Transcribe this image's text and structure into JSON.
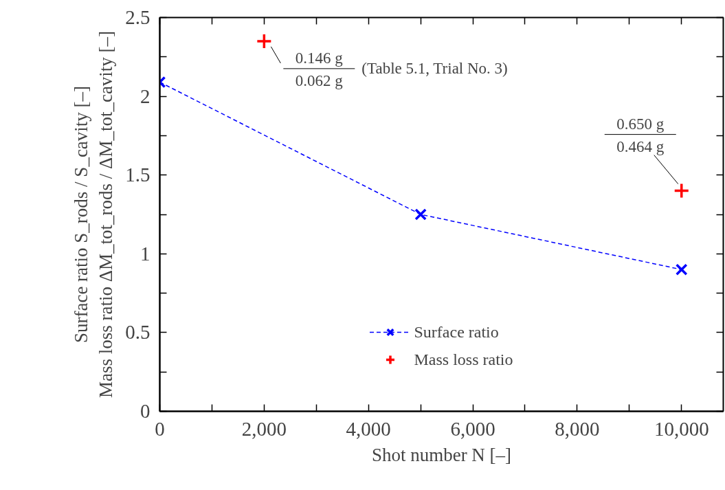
{
  "chart_data": {
    "type": "line",
    "xlabel": "Shot number N [–]",
    "ylabel": "Surface ratio S_rods / S_cavity [–]\nMass loss ratio ΔM_tot_rods / ΔM_tot_cavity [–]",
    "x": [
      0,
      5000,
      10000
    ],
    "series": [
      {
        "name": "Surface ratio",
        "color": "#0000ff",
        "marker": "x",
        "line_style": "dashed",
        "values": [
          2.09,
          1.25,
          0.9
        ]
      },
      {
        "name": "Mass loss ratio",
        "color": "#ff0000",
        "type": "scatter",
        "marker": "cross",
        "x": [
          2000,
          10000
        ],
        "values": [
          2.35,
          1.4
        ]
      }
    ],
    "annotations": [
      "0.146 g",
      {
        "text": "0.062 g",
        "x": 2000,
        "y": 2.35
      },
      "(Table 5.1, Trial No. 3)",
      "0.650 g",
      {
        "text": "0.464 g",
        "x": 10000,
        "y": 1.4
      }
    ],
    "xlim": [
      0,
      10800
    ],
    "ylim": [
      0,
      2.5
    ],
    "xticks": [
      0,
      {
        "value": 1000,
        "label": null
      },
      {
        "value": 2000,
        "label": "2,000"
      },
      {
        "value": 3000,
        "label": null
      },
      {
        "value": 4000,
        "label": "4,000"
      },
      {
        "value": 5000,
        "label": null
      },
      {
        "value": 6000,
        "label": "6,000"
      },
      {
        "value": 7000,
        "label": null
      },
      {
        "value": 8000,
        "label": "8,000"
      },
      {
        "value": 9000,
        "label": null
      },
      {
        "value": 10000,
        "label": "10,000"
      }
    ],
    "yticks": [
      0,
      {
        "value": 0.25,
        "label": null
      },
      0.5,
      {
        "value": 0.75,
        "label": null
      },
      1,
      {
        "value": 1.25,
        "label": null
      },
      1.5,
      {
        "value": 1.75,
        "label": null
      },
      2,
      {
        "value": 2.25,
        "label": null
      },
      2.5
    ],
    "grid": false,
    "legend": "bottom"
  }
}
